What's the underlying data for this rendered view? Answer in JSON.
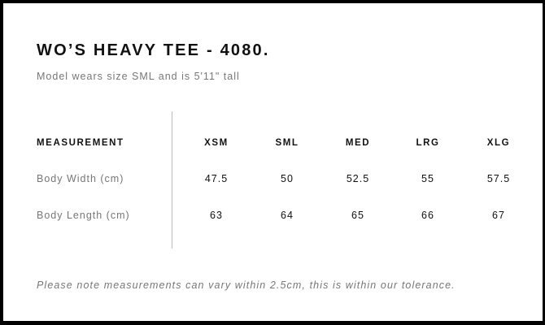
{
  "title": "WO’S HEAVY TEE - 4080.",
  "subtitle": "Model wears size SML and is 5'11\" tall",
  "table": {
    "header": "MEASUREMENT",
    "sizes": [
      "XSM",
      "SML",
      "MED",
      "LRG",
      "XLG"
    ],
    "rows": [
      {
        "label": "Body Width (cm)",
        "values": [
          "47.5",
          "50",
          "52.5",
          "55",
          "57.5"
        ]
      },
      {
        "label": "Body Length (cm)",
        "values": [
          "63",
          "64",
          "65",
          "66",
          "67"
        ]
      }
    ]
  },
  "note": "Please note measurements can vary within 2.5cm, this is within our tolerance."
}
